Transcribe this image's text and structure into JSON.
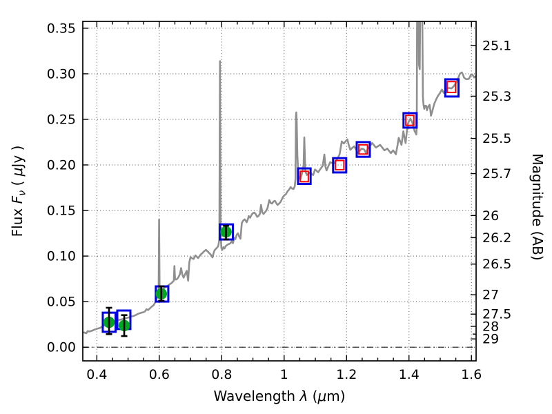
{
  "figure": {
    "background": "#ffffff",
    "description": "Galaxy SED: model spectrum with photometric points, flux vs wavelength, AB magnitude on right axis"
  },
  "chart_data": {
    "type": "line",
    "title": "",
    "xlabel_plain": "Wavelength λ (μm)",
    "ylabel_left_plain": "Flux Fν ( μJy )",
    "ylabel_right_plain": "Magnitude (AB)",
    "xlabel_parts": [
      {
        "t": "Wavelength ",
        "s": "n"
      },
      {
        "t": "λ",
        "s": "i"
      },
      {
        "t": " (",
        "s": "n"
      },
      {
        "t": "μ",
        "s": "i"
      },
      {
        "t": "m)",
        "s": "n"
      }
    ],
    "ylabel_left_parts": [
      {
        "t": "Flux ",
        "s": "n"
      },
      {
        "t": "F",
        "s": "i"
      },
      {
        "t": "ν",
        "s": "sub"
      },
      {
        "t": " ( ",
        "s": "n"
      },
      {
        "t": "μ",
        "s": "i"
      },
      {
        "t": "Jy )",
        "s": "n"
      }
    ],
    "ylabel_right_parts": [
      {
        "t": "Magnitude (AB)",
        "s": "n"
      }
    ],
    "xlim": [
      0.355,
      1.615
    ],
    "ylim": [
      -0.015,
      0.3575
    ],
    "x_minor_step": 0.05,
    "grid": {
      "style": "dotted",
      "color": "#444444"
    },
    "legend": "none",
    "x_ticks": [
      {
        "v": 0.4,
        "label": "0.4"
      },
      {
        "v": 0.6,
        "label": "0.6"
      },
      {
        "v": 0.8,
        "label": "0.8"
      },
      {
        "v": 1.0,
        "label": "1"
      },
      {
        "v": 1.2,
        "label": "1.2"
      },
      {
        "v": 1.4,
        "label": "1.4"
      },
      {
        "v": 1.6,
        "label": "1.6"
      }
    ],
    "y_ticks_left": [
      {
        "v": 0.0,
        "label": "0.00"
      },
      {
        "v": 0.05,
        "label": "0.05"
      },
      {
        "v": 0.1,
        "label": "0.10"
      },
      {
        "v": 0.15,
        "label": "0.15"
      },
      {
        "v": 0.2,
        "label": "0.20"
      },
      {
        "v": 0.25,
        "label": "0.25"
      },
      {
        "v": 0.3,
        "label": "0.30"
      },
      {
        "v": 0.35,
        "label": "0.35"
      }
    ],
    "y_ticks_right_mag": [
      {
        "label": "25.1",
        "flux": 0.3311
      },
      {
        "label": "25.3",
        "flux": 0.2754
      },
      {
        "label": "25.5",
        "flux": 0.2291
      },
      {
        "label": "25.7",
        "flux": 0.1905
      },
      {
        "label": "26",
        "flux": 0.1445
      },
      {
        "label": "26.2",
        "flux": 0.1202
      },
      {
        "label": "26.5",
        "flux": 0.0912
      },
      {
        "label": "27",
        "flux": 0.0575
      },
      {
        "label": "27.5",
        "flux": 0.0363
      },
      {
        "label": "28",
        "flux": 0.0229
      },
      {
        "label": "",
        "flux": 0.0144
      },
      {
        "label": "29",
        "flux": 0.0091
      }
    ],
    "zero_line": {
      "flux": 0.0,
      "style": "dash-dot",
      "color": "#1a1a1a"
    },
    "colors": {
      "spectrum": "#8f8f8f",
      "model_box": "#0000e0",
      "template_box": "#ff0000",
      "observed_point": "#00a520",
      "error_bar": "#000000",
      "frame": "#000000"
    },
    "series": [
      {
        "name": "model-spectrum",
        "kind": "line"
      },
      {
        "name": "model-photometry",
        "kind": "open-blue-squares"
      },
      {
        "name": "template-photometry",
        "kind": "open-red-squares"
      },
      {
        "name": "observed-photometry",
        "kind": "green-circles-with-errorbars"
      }
    ],
    "spectrum_points": [
      [
        0.357,
        0.0165
      ],
      [
        0.362,
        0.0158
      ],
      [
        0.366,
        0.0152
      ],
      [
        0.371,
        0.0178
      ],
      [
        0.376,
        0.0172
      ],
      [
        0.381,
        0.0177
      ],
      [
        0.386,
        0.0183
      ],
      [
        0.392,
        0.0192
      ],
      [
        0.398,
        0.02
      ],
      [
        0.404,
        0.0206
      ],
      [
        0.411,
        0.0213
      ],
      [
        0.418,
        0.0228
      ],
      [
        0.425,
        0.0243
      ],
      [
        0.432,
        0.0257
      ],
      [
        0.439,
        0.0268
      ],
      [
        0.445,
        0.0273
      ],
      [
        0.452,
        0.0278
      ],
      [
        0.458,
        0.0286
      ],
      [
        0.465,
        0.0294
      ],
      [
        0.472,
        0.03
      ],
      [
        0.48,
        0.0306
      ],
      [
        0.488,
        0.0313
      ],
      [
        0.496,
        0.0321
      ],
      [
        0.503,
        0.0328
      ],
      [
        0.51,
        0.0337
      ],
      [
        0.517,
        0.0341
      ],
      [
        0.524,
        0.0352
      ],
      [
        0.53,
        0.0363
      ],
      [
        0.536,
        0.0371
      ],
      [
        0.542,
        0.0378
      ],
      [
        0.549,
        0.0384
      ],
      [
        0.554,
        0.0391
      ],
      [
        0.559,
        0.0417
      ],
      [
        0.564,
        0.0407
      ],
      [
        0.57,
        0.0427
      ],
      [
        0.576,
        0.0446
      ],
      [
        0.582,
        0.0461
      ],
      [
        0.588,
        0.0498
      ],
      [
        0.593,
        0.0547
      ],
      [
        0.596,
        0.0585
      ],
      [
        0.598,
        0.062
      ],
      [
        0.5995,
        0.14
      ],
      [
        0.601,
        0.063
      ],
      [
        0.604,
        0.0612
      ],
      [
        0.609,
        0.0621
      ],
      [
        0.614,
        0.0645
      ],
      [
        0.62,
        0.0658
      ],
      [
        0.626,
        0.0672
      ],
      [
        0.632,
        0.0687
      ],
      [
        0.638,
        0.07
      ],
      [
        0.643,
        0.0716
      ],
      [
        0.6465,
        0.073
      ],
      [
        0.6485,
        0.089
      ],
      [
        0.6505,
        0.0745
      ],
      [
        0.654,
        0.0743
      ],
      [
        0.658,
        0.0752
      ],
      [
        0.662,
        0.0772
      ],
      [
        0.666,
        0.0802
      ],
      [
        0.67,
        0.0868
      ],
      [
        0.674,
        0.0795
      ],
      [
        0.678,
        0.0763
      ],
      [
        0.683,
        0.0803
      ],
      [
        0.688,
        0.0838
      ],
      [
        0.6925,
        0.073
      ],
      [
        0.696,
        0.093
      ],
      [
        0.7,
        0.0988
      ],
      [
        0.705,
        0.0975
      ],
      [
        0.71,
        0.0968
      ],
      [
        0.716,
        0.1008
      ],
      [
        0.7205,
        0.0992
      ],
      [
        0.7245,
        0.0978
      ],
      [
        0.729,
        0.1
      ],
      [
        0.733,
        0.1018
      ],
      [
        0.738,
        0.1032
      ],
      [
        0.742,
        0.1048
      ],
      [
        0.746,
        0.1058
      ],
      [
        0.7495,
        0.1068
      ],
      [
        0.753,
        0.1057
      ],
      [
        0.7565,
        0.1046
      ],
      [
        0.76,
        0.1032
      ],
      [
        0.764,
        0.102
      ],
      [
        0.767,
        0.1005
      ],
      [
        0.7705,
        0.0985
      ],
      [
        0.774,
        0.103
      ],
      [
        0.777,
        0.1062
      ],
      [
        0.781,
        0.1078
      ],
      [
        0.785,
        0.1092
      ],
      [
        0.789,
        0.111
      ],
      [
        0.7925,
        0.118
      ],
      [
        0.7945,
        0.314
      ],
      [
        0.7965,
        0.1255
      ],
      [
        0.799,
        0.1085
      ],
      [
        0.802,
        0.1068
      ],
      [
        0.8055,
        0.1098
      ],
      [
        0.809,
        0.1083
      ],
      [
        0.8125,
        0.1108
      ],
      [
        0.816,
        0.1118
      ],
      [
        0.82,
        0.1128
      ],
      [
        0.824,
        0.1133
      ],
      [
        0.828,
        0.1142
      ],
      [
        0.832,
        0.1162
      ],
      [
        0.836,
        0.1142
      ],
      [
        0.84,
        0.1198
      ],
      [
        0.844,
        0.1186
      ],
      [
        0.848,
        0.1233
      ],
      [
        0.852,
        0.125
      ],
      [
        0.856,
        0.1215
      ],
      [
        0.86,
        0.119
      ],
      [
        0.8645,
        0.1364
      ],
      [
        0.869,
        0.139
      ],
      [
        0.8733,
        0.1402
      ],
      [
        0.8775,
        0.1385
      ],
      [
        0.88,
        0.1371
      ],
      [
        0.8845,
        0.141
      ],
      [
        0.8865,
        0.1439
      ],
      [
        0.891,
        0.142
      ],
      [
        0.8955,
        0.1452
      ],
      [
        0.9,
        0.147
      ],
      [
        0.9045,
        0.1477
      ],
      [
        0.909,
        0.146
      ],
      [
        0.9135,
        0.143
      ],
      [
        0.918,
        0.144
      ],
      [
        0.9225,
        0.1465
      ],
      [
        0.926,
        0.156
      ],
      [
        0.93,
        0.148
      ],
      [
        0.934,
        0.1462
      ],
      [
        0.9385,
        0.148
      ],
      [
        0.943,
        0.15
      ],
      [
        0.947,
        0.153
      ],
      [
        0.9525,
        0.1614
      ],
      [
        0.9575,
        0.158
      ],
      [
        0.9615,
        0.1576
      ],
      [
        0.966,
        0.16
      ],
      [
        0.9705,
        0.1606
      ],
      [
        0.975,
        0.158
      ],
      [
        0.979,
        0.1561
      ],
      [
        0.9835,
        0.1575
      ],
      [
        0.988,
        0.1591
      ],
      [
        0.9925,
        0.162
      ],
      [
        0.9965,
        0.165
      ],
      [
        1.001,
        0.1667
      ],
      [
        1.006,
        0.168
      ],
      [
        1.011,
        0.1712
      ],
      [
        1.016,
        0.173
      ],
      [
        1.021,
        0.1757
      ],
      [
        1.026,
        0.174
      ],
      [
        1.03,
        0.1735
      ],
      [
        1.034,
        0.1765
      ],
      [
        1.0365,
        0.185
      ],
      [
        1.0378,
        0.252
      ],
      [
        1.039,
        0.2576
      ],
      [
        1.0402,
        0.248
      ],
      [
        1.0425,
        0.21
      ],
      [
        1.046,
        0.188
      ],
      [
        1.0518,
        0.184
      ],
      [
        1.057,
        0.1905
      ],
      [
        1.0624,
        0.2
      ],
      [
        1.0646,
        0.2303
      ],
      [
        1.068,
        0.193
      ],
      [
        1.073,
        0.189
      ],
      [
        1.078,
        0.1905
      ],
      [
        1.083,
        0.1917
      ],
      [
        1.088,
        0.19
      ],
      [
        1.093,
        0.189
      ],
      [
        1.099,
        0.195
      ],
      [
        1.104,
        0.1935
      ],
      [
        1.109,
        0.192
      ],
      [
        1.1135,
        0.1942
      ],
      [
        1.118,
        0.1965
      ],
      [
        1.1235,
        0.199
      ],
      [
        1.129,
        0.2114
      ],
      [
        1.1325,
        0.198
      ],
      [
        1.136,
        0.194
      ],
      [
        1.1415,
        0.1985
      ],
      [
        1.1475,
        0.203
      ],
      [
        1.153,
        0.2022
      ],
      [
        1.159,
        0.2015
      ],
      [
        1.165,
        0.204
      ],
      [
        1.171,
        0.2068
      ],
      [
        1.178,
        0.212
      ],
      [
        1.1845,
        0.2258
      ],
      [
        1.191,
        0.2235
      ],
      [
        1.1965,
        0.2258
      ],
      [
        1.2025,
        0.228
      ],
      [
        1.207,
        0.222
      ],
      [
        1.212,
        0.2167
      ],
      [
        1.218,
        0.2186
      ],
      [
        1.2245,
        0.2205
      ],
      [
        1.2305,
        0.2168
      ],
      [
        1.236,
        0.213
      ],
      [
        1.242,
        0.2155
      ],
      [
        1.2485,
        0.218
      ],
      [
        1.2525,
        0.2175
      ],
      [
        1.2565,
        0.217
      ],
      [
        1.2625,
        0.213
      ],
      [
        1.268,
        0.218
      ],
      [
        1.275,
        0.221
      ],
      [
        1.282,
        0.224
      ],
      [
        1.288,
        0.2215
      ],
      [
        1.294,
        0.219
      ],
      [
        1.3005,
        0.2205
      ],
      [
        1.3075,
        0.222
      ],
      [
        1.3145,
        0.219
      ],
      [
        1.3215,
        0.216
      ],
      [
        1.326,
        0.217
      ],
      [
        1.3305,
        0.218
      ],
      [
        1.336,
        0.2155
      ],
      [
        1.342,
        0.213
      ],
      [
        1.349,
        0.216
      ],
      [
        1.3535,
        0.214
      ],
      [
        1.358,
        0.2117
      ],
      [
        1.363,
        0.221
      ],
      [
        1.367,
        0.2297
      ],
      [
        1.3715,
        0.226
      ],
      [
        1.376,
        0.222
      ],
      [
        1.379,
        0.2295
      ],
      [
        1.382,
        0.237
      ],
      [
        1.3855,
        0.23
      ],
      [
        1.389,
        0.224
      ],
      [
        1.3925,
        0.2345
      ],
      [
        1.396,
        0.2447
      ],
      [
        1.4,
        0.248
      ],
      [
        1.4045,
        0.2508
      ],
      [
        1.408,
        0.2485
      ],
      [
        1.411,
        0.2462
      ],
      [
        1.4145,
        0.2415
      ],
      [
        1.418,
        0.2371
      ],
      [
        1.421,
        0.2352
      ],
      [
        1.4235,
        0.2334
      ],
      [
        1.425,
        0.242
      ],
      [
        1.4265,
        0.42
      ],
      [
        1.4295,
        0.42
      ],
      [
        1.432,
        0.31
      ],
      [
        1.4345,
        0.305
      ],
      [
        1.437,
        0.42
      ],
      [
        1.4415,
        0.42
      ],
      [
        1.4445,
        0.275
      ],
      [
        1.4465,
        0.266
      ],
      [
        1.449,
        0.2615
      ],
      [
        1.4515,
        0.265
      ],
      [
        1.4551,
        0.2648
      ],
      [
        1.4575,
        0.26
      ],
      [
        1.4615,
        0.264
      ],
      [
        1.4661,
        0.266
      ],
      [
        1.4685,
        0.26
      ],
      [
        1.4705,
        0.254
      ],
      [
        1.474,
        0.258
      ],
      [
        1.477,
        0.262
      ],
      [
        1.4815,
        0.2675
      ],
      [
        1.4881,
        0.2727
      ],
      [
        1.4935,
        0.276
      ],
      [
        1.4991,
        0.2788
      ],
      [
        1.5025,
        0.281
      ],
      [
        1.5058,
        0.2826
      ],
      [
        1.509,
        0.2805
      ],
      [
        1.512,
        0.279
      ],
      [
        1.5155,
        0.281
      ],
      [
        1.519,
        0.283
      ],
      [
        1.5235,
        0.284
      ],
      [
        1.528,
        0.2845
      ],
      [
        1.532,
        0.2842
      ],
      [
        1.5366,
        0.284
      ],
      [
        1.541,
        0.2855
      ],
      [
        1.545,
        0.287
      ],
      [
        1.5495,
        0.2895
      ],
      [
        1.5542,
        0.292
      ],
      [
        1.5586,
        0.296
      ],
      [
        1.563,
        0.3
      ],
      [
        1.5665,
        0.301
      ],
      [
        1.5696,
        0.3015
      ],
      [
        1.573,
        0.299
      ],
      [
        1.5762,
        0.296
      ],
      [
        1.5805,
        0.2945
      ],
      [
        1.585,
        0.294
      ],
      [
        1.5917,
        0.2945
      ],
      [
        1.595,
        0.2965
      ],
      [
        1.5983,
        0.299
      ],
      [
        1.6027,
        0.2993
      ],
      [
        1.606,
        0.2975
      ],
      [
        1.609,
        0.296
      ],
      [
        1.6137,
        0.2975
      ]
    ],
    "observed_points": [
      {
        "lambda": 0.439,
        "flux": 0.0273,
        "err_hi": 0.0433,
        "err_lo": 0.0143
      },
      {
        "lambda": 0.4877,
        "flux": 0.0237,
        "err_hi": 0.0352,
        "err_lo": 0.0122
      },
      {
        "lambda": 0.6065,
        "flux": 0.0586,
        "err_hi": 0.0668,
        "err_lo": 0.0509
      },
      {
        "lambda": 0.8138,
        "flux": 0.1265,
        "err_hi": 0.1333,
        "err_lo": 0.1182
      }
    ],
    "model_boxes_blue": [
      {
        "lambda": 0.4395,
        "flux": 0.0274,
        "w": 0.041,
        "h": 0.021
      },
      {
        "lambda": 0.4865,
        "flux": 0.0301,
        "w": 0.042,
        "h": 0.0203
      },
      {
        "lambda": 0.6089,
        "flux": 0.0584,
        "w": 0.04,
        "h": 0.0167
      },
      {
        "lambda": 0.8149,
        "flux": 0.1265,
        "w": 0.042,
        "h": 0.0166
      },
      {
        "lambda": 1.0647,
        "flux": 0.1877,
        "w": 0.0403,
        "h": 0.017
      },
      {
        "lambda": 1.1779,
        "flux": 0.1996,
        "w": 0.0419,
        "h": 0.0157
      },
      {
        "lambda": 1.2535,
        "flux": 0.217,
        "w": 0.0419,
        "h": 0.0161
      },
      {
        "lambda": 1.4034,
        "flux": 0.2489,
        "w": 0.0419,
        "h": 0.0159
      },
      {
        "lambda": 1.5375,
        "flux": 0.2845,
        "w": 0.0425,
        "h": 0.0189
      }
    ],
    "template_boxes_red": [
      {
        "lambda": 1.0647,
        "flux": 0.1873,
        "w": 0.0257,
        "h": 0.0114
      },
      {
        "lambda": 1.1778,
        "flux": 0.1998,
        "w": 0.0272,
        "h": 0.0101
      },
      {
        "lambda": 1.2531,
        "flux": 0.217,
        "w": 0.028,
        "h": 0.0101
      },
      {
        "lambda": 1.4026,
        "flux": 0.2489,
        "w": 0.0258,
        "h": 0.0109
      },
      {
        "lambda": 1.5357,
        "flux": 0.2855,
        "w": 0.0273,
        "h": 0.0119
      }
    ]
  }
}
